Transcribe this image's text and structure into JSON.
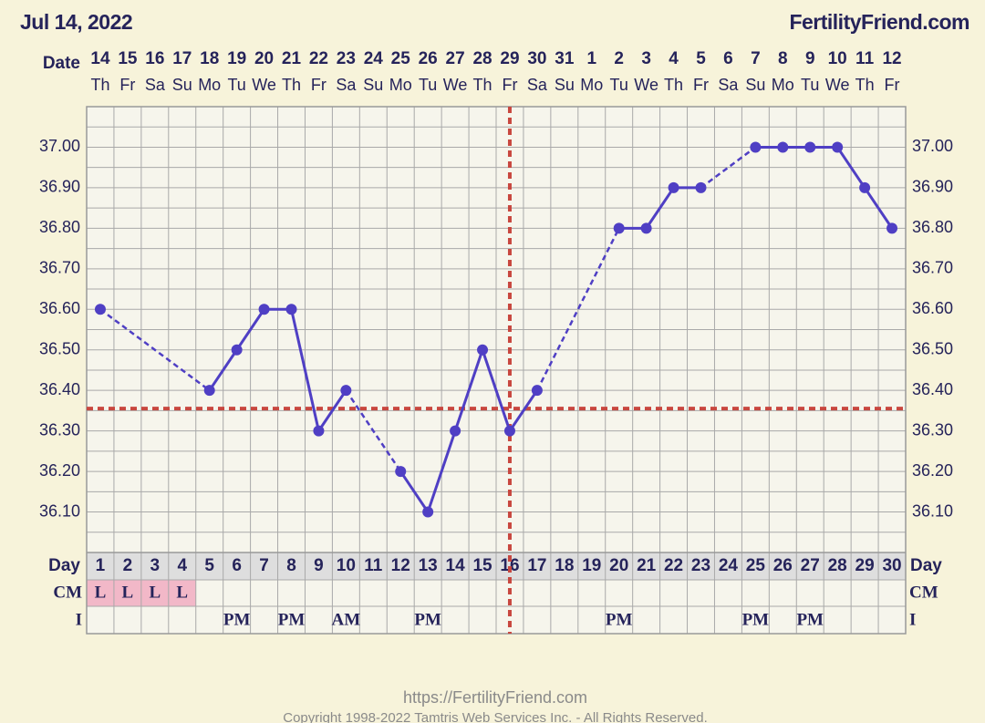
{
  "header": {
    "date": "Jul 14, 2022",
    "site": "FertilityFriend.com"
  },
  "chart_data": {
    "type": "line",
    "date_label": "Date",
    "dates": [
      "14",
      "15",
      "16",
      "17",
      "18",
      "19",
      "20",
      "21",
      "22",
      "23",
      "24",
      "25",
      "26",
      "27",
      "28",
      "29",
      "30",
      "31",
      "1",
      "2",
      "3",
      "4",
      "5",
      "6",
      "7",
      "8",
      "9",
      "10",
      "11",
      "12"
    ],
    "weekdays": [
      "Th",
      "Fr",
      "Sa",
      "Su",
      "Mo",
      "Tu",
      "We",
      "Th",
      "Fr",
      "Sa",
      "Su",
      "Mo",
      "Tu",
      "We",
      "Th",
      "Fr",
      "Sa",
      "Su",
      "Mo",
      "Tu",
      "We",
      "Th",
      "Fr",
      "Sa",
      "Su",
      "Mo",
      "Tu",
      "We",
      "Th",
      "Fr"
    ],
    "day_label": "Day",
    "days": [
      1,
      2,
      3,
      4,
      5,
      6,
      7,
      8,
      9,
      10,
      11,
      12,
      13,
      14,
      15,
      16,
      17,
      18,
      19,
      20,
      21,
      22,
      23,
      24,
      25,
      26,
      27,
      28,
      29,
      30
    ],
    "cm_label": "CM",
    "cm": [
      "L",
      "L",
      "L",
      "L",
      null,
      null,
      null,
      null,
      null,
      null,
      null,
      null,
      null,
      null,
      null,
      null,
      null,
      null,
      null,
      null,
      null,
      null,
      null,
      null,
      null,
      null,
      null,
      null,
      null,
      null
    ],
    "intercourse_label": "I",
    "intercourse": [
      null,
      null,
      null,
      null,
      null,
      "PM",
      null,
      "PM",
      null,
      "AM",
      null,
      null,
      "PM",
      null,
      null,
      null,
      null,
      null,
      null,
      "PM",
      null,
      null,
      null,
      null,
      "PM",
      null,
      "PM",
      null,
      null,
      null
    ],
    "series": [
      {
        "color": "#4f3fc4",
        "values": [
          36.6,
          null,
          null,
          null,
          36.4,
          36.5,
          36.6,
          36.6,
          36.3,
          36.4,
          null,
          36.2,
          36.1,
          36.3,
          36.5,
          36.3,
          36.4,
          null,
          null,
          36.8,
          36.8,
          36.9,
          36.9,
          null,
          37.0,
          37.0,
          37.0,
          37.0,
          36.9,
          36.8
        ]
      }
    ],
    "ylim": [
      36.0,
      37.1
    ],
    "yticks": [
      {
        "value": 36.1,
        "label": "36.10"
      },
      {
        "value": 36.2,
        "label": "36.20"
      },
      {
        "value": 36.3,
        "label": "36.30"
      },
      {
        "value": 36.4,
        "label": "36.40"
      },
      {
        "value": 36.5,
        "label": "36.50"
      },
      {
        "value": 36.6,
        "label": "36.60"
      },
      {
        "value": 36.7,
        "label": "36.70"
      },
      {
        "value": 36.8,
        "label": "36.80"
      },
      {
        "value": 36.9,
        "label": "36.90"
      },
      {
        "value": 37.0,
        "label": "37.00"
      }
    ],
    "yminorticks": [
      36.05,
      36.15,
      36.25,
      36.35,
      36.45,
      36.55,
      36.65,
      36.75,
      36.85,
      36.95,
      37.05
    ],
    "coverline": 36.355,
    "ovulation_day": 16,
    "marker_color": "#c8473f",
    "grid": true
  },
  "footer": {
    "url": "https://FertilityFriend.com",
    "copyright": "Copyright 1998-2022 Tamtris Web Services Inc. - All Rights Reserved."
  }
}
